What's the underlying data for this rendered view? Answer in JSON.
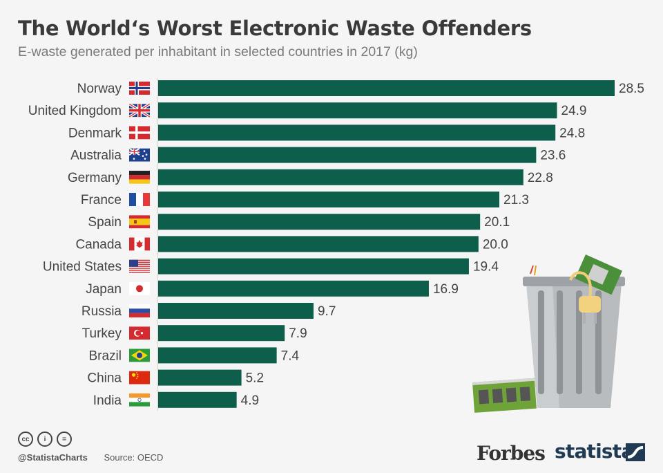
{
  "title": "The World‘s Worst Electronic Waste Offenders",
  "subtitle": "E-waste generated per inhabitant in selected countries in 2017 (kg)",
  "chart_data": {
    "type": "bar",
    "orientation": "horizontal",
    "categories": [
      "Norway",
      "United Kingdom",
      "Denmark",
      "Australia",
      "Germany",
      "France",
      "Spain",
      "Canada",
      "United States",
      "Japan",
      "Russia",
      "Turkey",
      "Brazil",
      "China",
      "India"
    ],
    "values": [
      28.5,
      24.9,
      24.8,
      23.6,
      22.8,
      21.3,
      20.1,
      20.0,
      19.4,
      16.9,
      9.7,
      7.9,
      7.4,
      5.2,
      4.9
    ],
    "value_labels": [
      "28.5",
      "24.9",
      "24.8",
      "23.6",
      "22.8",
      "21.3",
      "20.1",
      "20.0",
      "19.4",
      "16.9",
      "9.7",
      "7.9",
      "7.4",
      "5.2",
      "4.9"
    ],
    "flag_icons": [
      "norway-flag-icon",
      "uk-flag-icon",
      "denmark-flag-icon",
      "australia-flag-icon",
      "germany-flag-icon",
      "france-flag-icon",
      "spain-flag-icon",
      "canada-flag-icon",
      "usa-flag-icon",
      "japan-flag-icon",
      "russia-flag-icon",
      "turkey-flag-icon",
      "brazil-flag-icon",
      "china-flag-icon",
      "india-flag-icon"
    ],
    "xlim": [
      0,
      28.5
    ],
    "bar_color": "#0d5e4a",
    "grid": false
  },
  "footer": {
    "handle": "@StatistaCharts",
    "source": "Source: OECD",
    "forbes": "Forbes",
    "statista": "statista"
  },
  "illustration": "trash-can-with-electronic-waste"
}
